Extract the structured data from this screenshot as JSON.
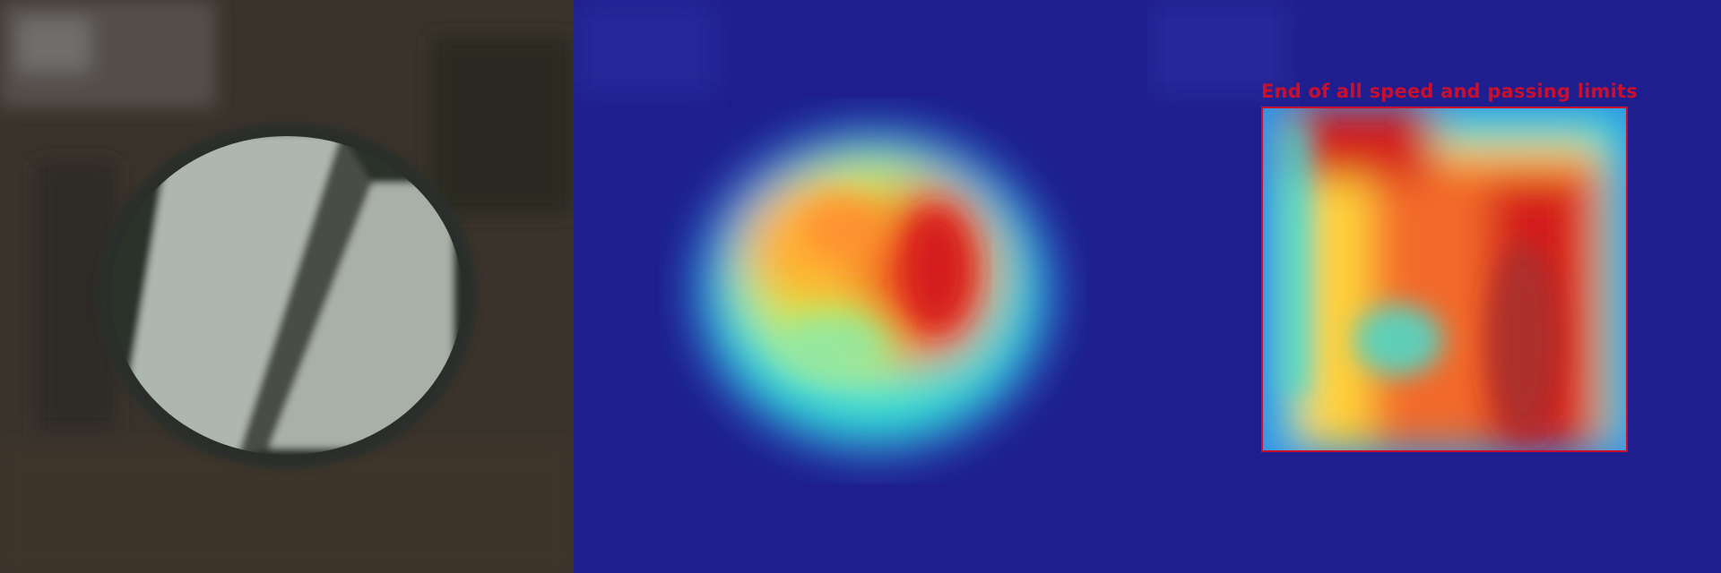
{
  "panels": [
    {
      "name": "original-image"
    },
    {
      "name": "heatmap-overlay"
    },
    {
      "name": "detection-overlay"
    }
  ],
  "detection": {
    "label": "End of all speed and passing limits",
    "color": "#c8102e"
  },
  "colors": {
    "photo_background": "#3a332b",
    "sign_face": "#aab3ab",
    "sign_stripe": "#4a4d45",
    "heatmap_background": "#1e1e8e",
    "heatmap_hot": "#e0201c",
    "heatmap_warm": "#ffd23a",
    "heatmap_mid": "#33e0d0"
  }
}
